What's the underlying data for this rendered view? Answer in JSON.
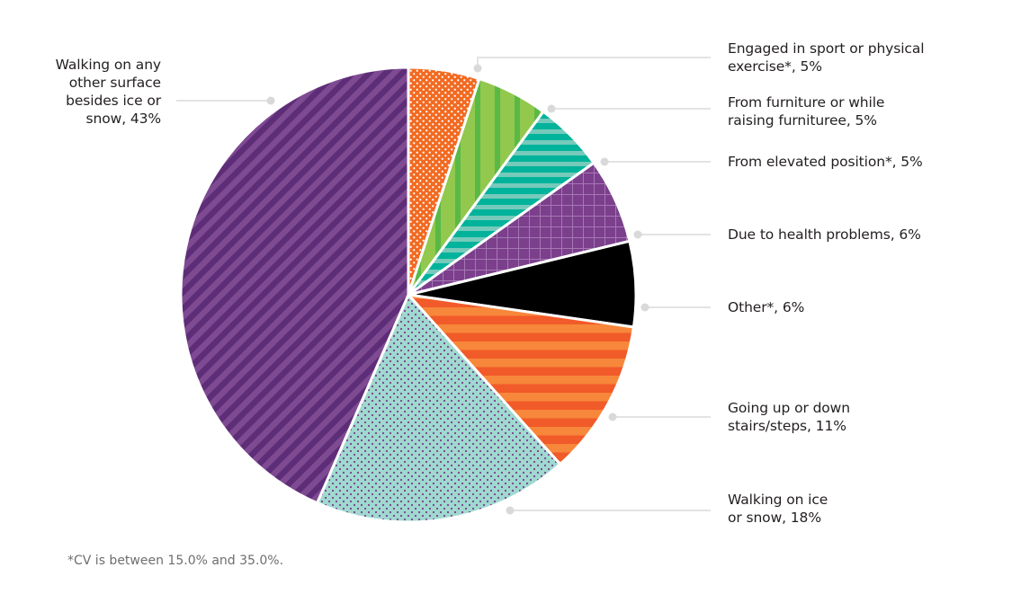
{
  "chart_data": {
    "type": "pie",
    "title": "",
    "start_angle_deg": 0,
    "direction": "clockwise",
    "center": [
      454,
      328
    ],
    "radius": 253,
    "slices": [
      {
        "key": "sport",
        "label": "Engaged in sport or physical exercise*",
        "value": 5,
        "display": "Engaged in sport or physical exercise*, 5%",
        "pattern": "orange-dots",
        "colors": [
          "#f26a21",
          "#ffffff"
        ]
      },
      {
        "key": "furniture",
        "label": "From furniture or while raising furnituree",
        "value": 5,
        "display": "From furniture or while raising furnituree, 5%",
        "pattern": "green-vertical-stripes",
        "colors": [
          "#92c84d",
          "#5ab946"
        ]
      },
      {
        "key": "elevated",
        "label": "From elevated position*",
        "value": 5,
        "display": "From elevated position*, 5%",
        "pattern": "teal-horizontal-stripes",
        "colors": [
          "#00b39a",
          "#76cabb"
        ]
      },
      {
        "key": "health",
        "label": "Due to health problems",
        "value": 6,
        "display": "Due to health problems, 6%",
        "pattern": "purple-grid",
        "colors": [
          "#7b3f8c",
          "#a677b3"
        ]
      },
      {
        "key": "other",
        "label": "Other*",
        "value": 6,
        "display": "Other*, 6%",
        "pattern": "solid-black",
        "colors": [
          "#000000"
        ]
      },
      {
        "key": "stairs",
        "label": "Going up or down stairs/steps",
        "value": 11,
        "display": "Going up or down stairs/steps, 11%",
        "pattern": "orange-horizontal-stripes",
        "colors": [
          "#f15a29",
          "#f7873a"
        ]
      },
      {
        "key": "ice",
        "label": "Walking on ice or snow",
        "value": 18,
        "display": "Walking on ice or snow, 18%",
        "pattern": "mint-purple-dots",
        "colors": [
          "#9fd9d0",
          "#7b3f8c"
        ]
      },
      {
        "key": "walking",
        "label": "Walking on any other surface besides ice or snow",
        "value": 43,
        "display": "Walking on any other surface besides ice or snow, 43%",
        "pattern": "purple-diagonal-stripes",
        "colors": [
          "#5e2d78",
          "#7e4a92"
        ]
      }
    ],
    "legend": "leader-line callouts",
    "footnote": "*CV is between 15.0% and 35.0%."
  },
  "labels": {
    "sport": {
      "line1": "Engaged in sport or physical",
      "line2": "exercise*, 5%"
    },
    "furniture": {
      "line1": "From furniture or while",
      "line2": "raising furnituree, 5%"
    },
    "elevated": {
      "line1": "From elevated position*, 5%"
    },
    "health": {
      "line1": "Due to health problems, 6%"
    },
    "other": {
      "line1": "Other*, 6%"
    },
    "stairs": {
      "line1": "Going up or down",
      "line2": "stairs/steps, 11%"
    },
    "ice": {
      "line1": "Walking on ice",
      "line2": "or snow, 18%"
    },
    "walking": {
      "line1": "Walking on any",
      "line2": "other surface",
      "line3": "besides ice or",
      "line4": "snow, 43%"
    }
  },
  "footnote": "*CV is between 15.0% and 35.0%."
}
